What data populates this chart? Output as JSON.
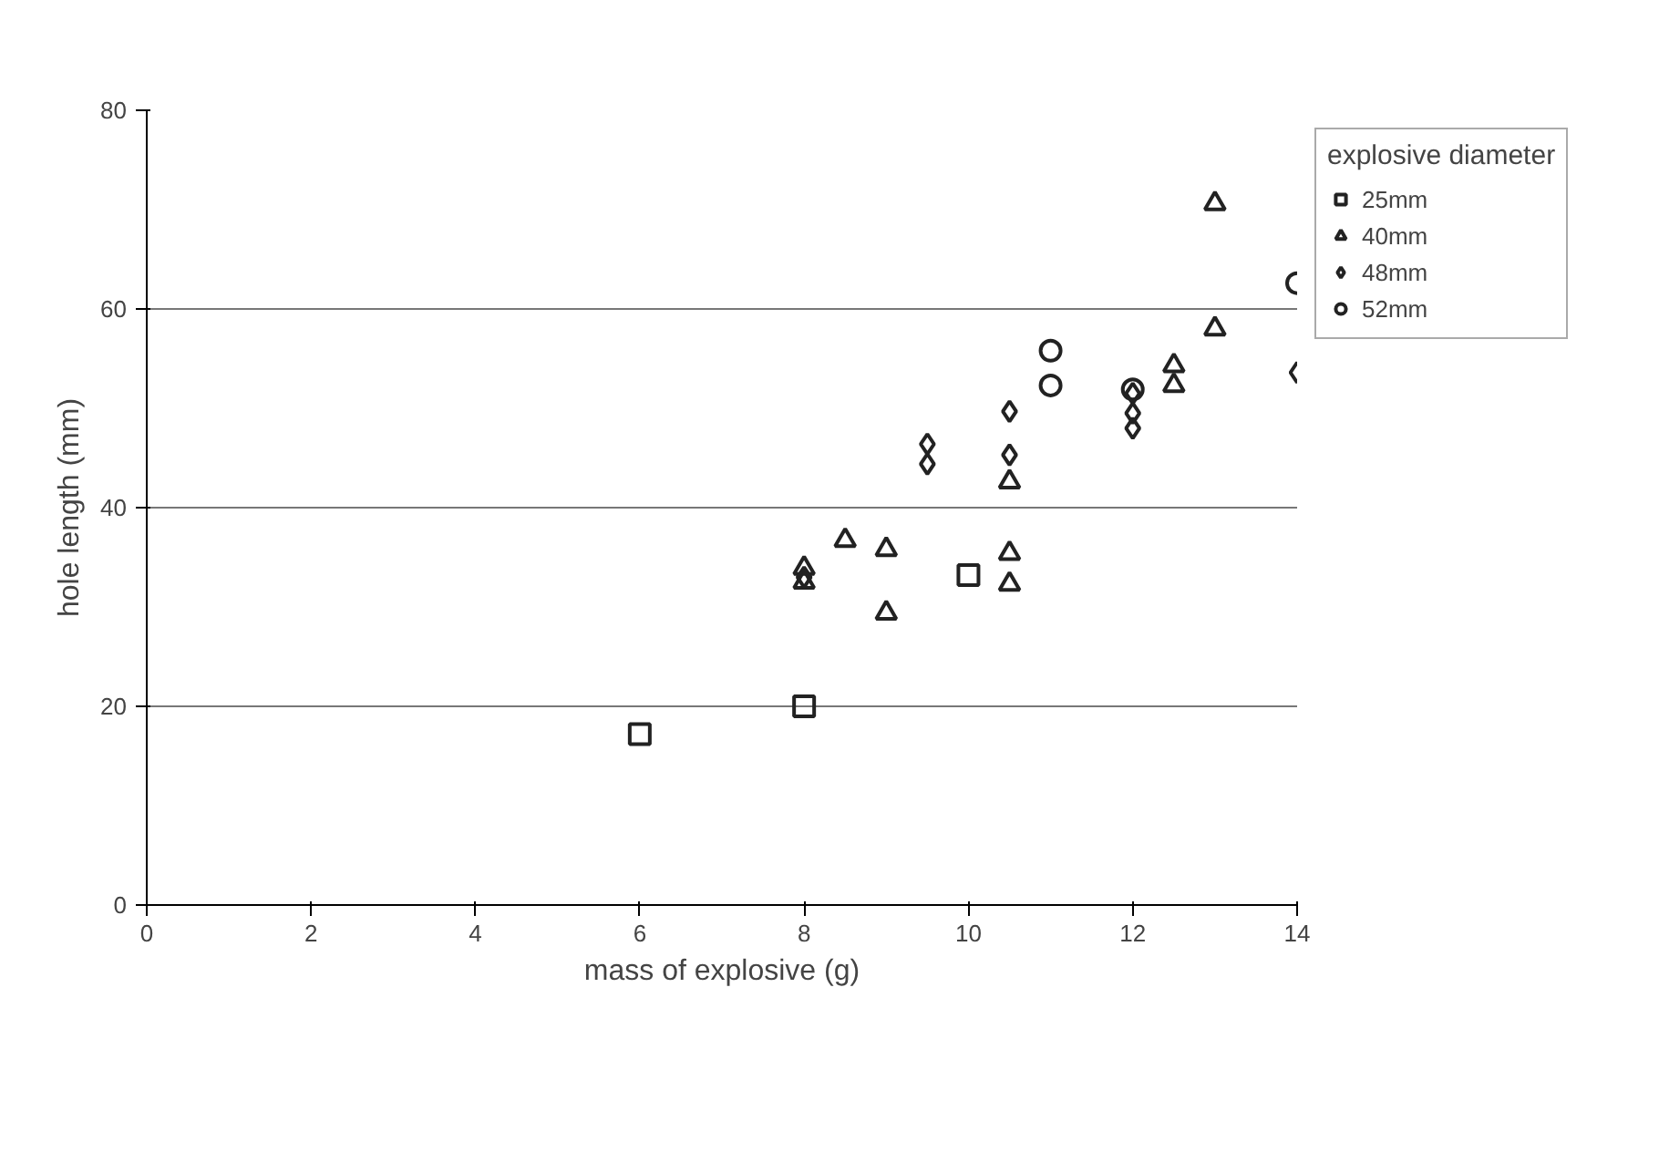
{
  "chart_data": {
    "type": "scatter",
    "xlabel": "mass of explosive (g)",
    "ylabel": "hole length (mm)",
    "legend_title": "explosive diameter",
    "legend": "right",
    "grid": "y",
    "xlim": [
      0,
      14
    ],
    "xticks": [
      0,
      2,
      4,
      6,
      8,
      10,
      12,
      14
    ],
    "ylim": [
      0,
      80
    ],
    "yticks": [
      0,
      20,
      40,
      60,
      80
    ],
    "series": [
      {
        "name": "25mm",
        "color": "#222222",
        "marker": "square",
        "x": [
          6,
          8,
          10
        ],
        "values": [
          17.2,
          20.0,
          33.2
        ]
      },
      {
        "name": "40mm",
        "color": "#222222",
        "marker": "triangle",
        "x": [
          8,
          8,
          8.5,
          9,
          9,
          10.5,
          10.5,
          10.5,
          12.5,
          12.5,
          13,
          13
        ],
        "values": [
          33.9,
          32.5,
          36.7,
          35.8,
          29.4,
          42.6,
          35.4,
          32.3,
          54.3,
          52.3,
          58.0,
          70.6
        ]
      },
      {
        "name": "48mm",
        "color": "#222222",
        "marker": "diamond",
        "x": [
          8,
          9.5,
          9.5,
          10.5,
          10.5,
          12,
          12,
          12,
          14
        ],
        "values": [
          33.0,
          46.4,
          44.4,
          49.7,
          45.3,
          51.5,
          49.5,
          48.0,
          53.6
        ]
      },
      {
        "name": "52mm",
        "color": "#222222",
        "marker": "circle",
        "x": [
          11,
          11,
          12,
          14
        ],
        "values": [
          55.8,
          52.3,
          51.9,
          62.6
        ]
      }
    ]
  }
}
